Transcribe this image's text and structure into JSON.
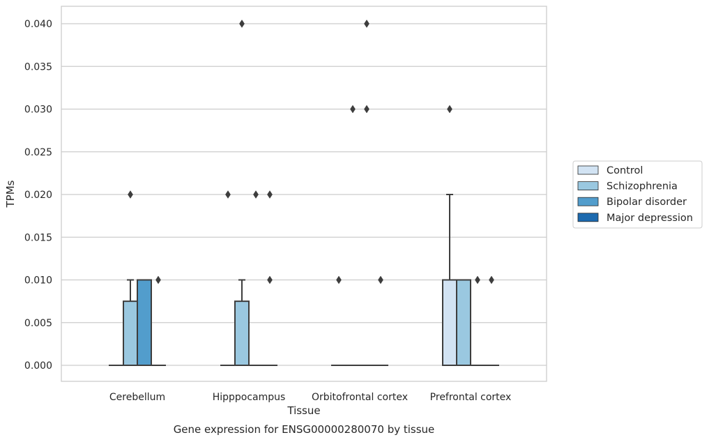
{
  "chart_data": {
    "type": "boxplot",
    "title": "",
    "xlabel": "Tissue",
    "ylabel": "TPMs",
    "caption": "Gene expression for ENSG00000280070 by tissue",
    "ylim": [
      -0.002,
      0.042
    ],
    "yticks": [
      "0.000",
      "0.005",
      "0.010",
      "0.015",
      "0.020",
      "0.025",
      "0.030",
      "0.035",
      "0.040"
    ],
    "grid": "horizontal",
    "legend_position": "right",
    "categories": [
      "Cerebellum",
      "Hipppocampus",
      "Orbitofrontal cortex",
      "Prefrontal cortex"
    ],
    "series": [
      {
        "name": "Control",
        "color": "#d2e3f3",
        "boxes": [
          {
            "q1": 0,
            "median": 0,
            "q3": 0,
            "whislo": 0,
            "whishi": 0,
            "fliers": []
          },
          {
            "q1": 0,
            "median": 0,
            "q3": 0,
            "whislo": 0,
            "whishi": 0,
            "fliers": [
              0.02
            ]
          },
          {
            "q1": 0,
            "median": 0,
            "q3": 0,
            "whislo": 0,
            "whishi": 0,
            "fliers": [
              0.01
            ]
          },
          {
            "q1": 0,
            "median": 0,
            "q3": 0.01,
            "whislo": 0,
            "whishi": 0.02,
            "fliers": [
              0.03
            ]
          }
        ]
      },
      {
        "name": "Schizophrenia",
        "color": "#9ac8e0",
        "boxes": [
          {
            "q1": 0,
            "median": 0,
            "q3": 0.0075,
            "whislo": 0,
            "whishi": 0.01,
            "fliers": [
              0.02
            ]
          },
          {
            "q1": 0,
            "median": 0,
            "q3": 0.0075,
            "whislo": 0,
            "whishi": 0.01,
            "fliers": [
              0.04
            ]
          },
          {
            "q1": 0,
            "median": 0,
            "q3": 0,
            "whislo": 0,
            "whishi": 0,
            "fliers": [
              0.03
            ]
          },
          {
            "q1": 0,
            "median": 0,
            "q3": 0.01,
            "whislo": 0,
            "whishi": 0.01,
            "fliers": []
          }
        ]
      },
      {
        "name": "Bipolar disorder",
        "color": "#529dcc",
        "boxes": [
          {
            "q1": 0,
            "median": 0,
            "q3": 0.01,
            "whislo": 0,
            "whishi": 0.01,
            "fliers": []
          },
          {
            "q1": 0,
            "median": 0,
            "q3": 0,
            "whislo": 0,
            "whishi": 0,
            "fliers": [
              0.02
            ]
          },
          {
            "q1": 0,
            "median": 0,
            "q3": 0,
            "whislo": 0,
            "whishi": 0,
            "fliers": [
              0.04,
              0.03
            ]
          },
          {
            "q1": 0,
            "median": 0,
            "q3": 0,
            "whislo": 0,
            "whishi": 0,
            "fliers": [
              0.01
            ]
          }
        ]
      },
      {
        "name": "Major depression",
        "color": "#1c6aaf",
        "boxes": [
          {
            "q1": 0,
            "median": 0,
            "q3": 0,
            "whislo": 0,
            "whishi": 0,
            "fliers": [
              0.01
            ]
          },
          {
            "q1": 0,
            "median": 0,
            "q3": 0,
            "whislo": 0,
            "whishi": 0,
            "fliers": [
              0.02,
              0.01
            ]
          },
          {
            "q1": 0,
            "median": 0,
            "q3": 0,
            "whislo": 0,
            "whishi": 0,
            "fliers": [
              0.01
            ]
          },
          {
            "q1": 0,
            "median": 0,
            "q3": 0,
            "whislo": 0,
            "whishi": 0,
            "fliers": [
              0.01
            ]
          }
        ]
      }
    ]
  }
}
